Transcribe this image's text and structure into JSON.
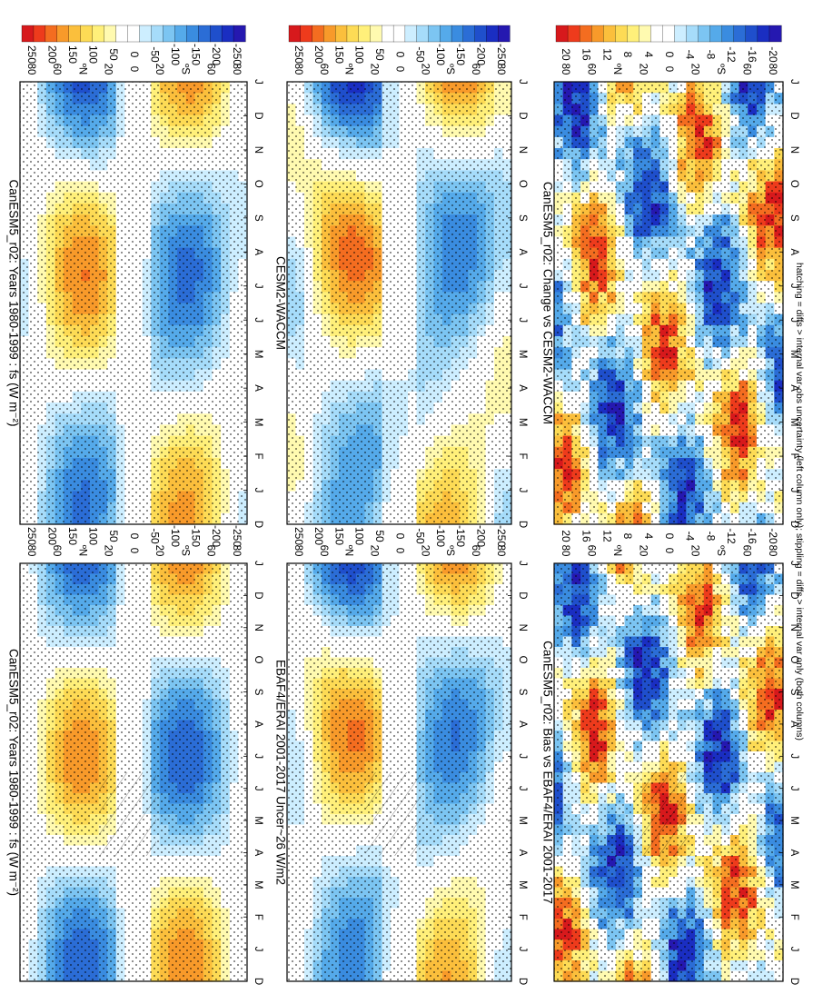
{
  "figure": {
    "footnote": "hatching = diffs > internal var-obs uncertainty (left column only); stippling = diffs > internal var only (both columns)"
  },
  "palettes": {
    "main": [
      "#d7191c",
      "#ee3b1c",
      "#f46d20",
      "#f89a2a",
      "#fbbf3c",
      "#fddb55",
      "#fff07a",
      "#fffab0",
      "#ffffff",
      "#ffffff",
      "#cdeeff",
      "#a6dcfa",
      "#7cc5f2",
      "#55aaea",
      "#3a8ce0",
      "#2b6dd6",
      "#1f4fcc",
      "#1a2ec2",
      "#2518b0"
    ],
    "main_ticks": [
      "250",
      "200",
      "150",
      "100",
      "50",
      "0",
      "-50",
      "-100",
      "-150",
      "-200",
      "-250"
    ],
    "diff_ticks": [
      "20",
      "16",
      "12",
      "8",
      "4",
      "0",
      "-4",
      "-8",
      "-12",
      "-16",
      "-20"
    ]
  },
  "axes": {
    "months": [
      "D",
      "J",
      "F",
      "M",
      "A",
      "M",
      "J",
      "J",
      "A",
      "S",
      "O",
      "N",
      "D",
      "J"
    ],
    "latitudes": [
      "80",
      "60",
      "ºN",
      "20",
      "0",
      "20",
      "ºS",
      "60",
      "80"
    ]
  },
  "panels": [
    {
      "id": "p1",
      "title": "CanESM5_r02: Years 1980-1999 : fs (W m⁻²)",
      "kind": "main",
      "hatch": true
    },
    {
      "id": "p2",
      "title": "CanESM5_r02: Years 1980-1999 : fs (W m⁻²)",
      "kind": "main",
      "hatch": false
    },
    {
      "id": "p3",
      "title": "EBAF4/ERAI 2001-2017 Uncer~26 W/m2",
      "kind": "main",
      "hatch": true
    },
    {
      "id": "p4",
      "title": "CESM2-WACCM",
      "kind": "main",
      "hatch": false
    },
    {
      "id": "p5",
      "title": "CanESM5_r02: Bias vs EBAF4/ERAI 2001-2017",
      "kind": "diff",
      "hatch": true
    },
    {
      "id": "p6",
      "title": "CanESM5_r02: Change vs CESM2-WACCM",
      "kind": "diff",
      "hatch": false
    }
  ],
  "chart_data": [
    {
      "type": "heatmap",
      "title": "CanESM5_r02: Years 1980-1999 : fs (W m⁻²)",
      "x": "month (Dec–Jan)",
      "y": "latitude 90ºN–90ºS",
      "zlim": [
        -250,
        250
      ],
      "pattern": "summer-hemisphere surface flux positive (~+150), winter hemisphere negative (~-150)"
    },
    {
      "type": "heatmap",
      "title": "CanESM5_r02: Years 1980-1999 : fs (W m⁻²)",
      "x": "month (Dec–Jan)",
      "y": "latitude 90ºN–90ºS",
      "zlim": [
        -250,
        250
      ]
    },
    {
      "type": "heatmap",
      "title": "EBAF4/ERAI 2001-2017 Uncer~26 W/m2",
      "x": "month (Dec–Jan)",
      "y": "latitude 90ºN–90ºS",
      "zlim": [
        -250,
        250
      ]
    },
    {
      "type": "heatmap",
      "title": "CESM2-WACCM",
      "x": "month (Dec–Jan)",
      "y": "latitude 90ºN–90ºS",
      "zlim": [
        -250,
        250
      ]
    },
    {
      "type": "heatmap",
      "title": "CanESM5_r02: Bias vs EBAF4/ERAI 2001-2017",
      "x": "month (Dec–Jan)",
      "y": "latitude 90ºN–90ºS",
      "zlim": [
        -20,
        20
      ]
    },
    {
      "type": "heatmap",
      "title": "CanESM5_r02: Change vs CESM2-WACCM",
      "x": "month (Dec–Jan)",
      "y": "latitude 90ºN–90ºS",
      "zlim": [
        -20,
        20
      ]
    }
  ]
}
